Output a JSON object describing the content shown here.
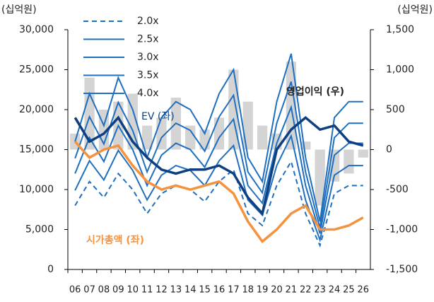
{
  "chart_data": {
    "type": "line",
    "y_label": "(십억원)",
    "y2_label": "(십억원)",
    "categories": [
      "06",
      "07",
      "08",
      "09",
      "10",
      "11",
      "12",
      "13",
      "14",
      "15",
      "16",
      "17",
      "18",
      "19",
      "20",
      "21",
      "22",
      "23",
      "24",
      "25",
      "26"
    ],
    "ylim": [
      0,
      30000
    ],
    "yticks": [
      0,
      {
        "value": 5000,
        "label": "5,000"
      },
      {
        "value": 10000,
        "label": "10,000"
      },
      {
        "value": 15000,
        "label": "15,000"
      },
      {
        "value": 20000,
        "label": "20,000"
      },
      {
        "value": 25000,
        "label": "25,000"
      },
      {
        "value": 30000,
        "label": "30,000"
      }
    ],
    "y2lim": [
      -1500,
      1500
    ],
    "y2ticks": [
      {
        "value": -1500,
        "label": "-1,500"
      },
      {
        "value": -1000,
        "label": "-1,000"
      },
      -500,
      0,
      500,
      {
        "value": 1000,
        "label": "1,000"
      },
      {
        "value": 1500,
        "label": "1,500"
      }
    ],
    "series": [
      {
        "name": "2.0x",
        "color": "#1f6fc0",
        "dash": true,
        "values": [
          8000,
          11000,
          9000,
          12000,
          10000,
          7000,
          9500,
          10500,
          10000,
          8500,
          11000,
          12500,
          7000,
          5500,
          10500,
          13500,
          7000,
          3000,
          9500,
          10500,
          10500
        ]
      },
      {
        "name": "2.5x",
        "color": "#1f6fc0",
        "values": [
          9900,
          13600,
          11200,
          14900,
          12400,
          8700,
          11800,
          13000,
          12400,
          10500,
          13600,
          15500,
          8700,
          6800,
          13000,
          16700,
          8700,
          3700,
          11800,
          13000,
          13000
        ]
      },
      {
        "name": "3.0x",
        "color": "#1f6fc0",
        "values": [
          12000,
          16500,
          13500,
          18000,
          15000,
          10500,
          14300,
          15800,
          15000,
          12800,
          16500,
          18800,
          10500,
          8300,
          15800,
          20300,
          10500,
          4500,
          14300,
          15800,
          15800
        ]
      },
      {
        "name": "3.5x",
        "color": "#1f6fc0",
        "values": [
          13900,
          19100,
          15700,
          20900,
          17400,
          12200,
          16500,
          18300,
          17400,
          14800,
          19100,
          21800,
          12200,
          9600,
          18300,
          23500,
          12200,
          5200,
          16500,
          18300,
          18300
        ]
      },
      {
        "name": "4.0x",
        "color": "#1f6fc0",
        "values": [
          16000,
          22000,
          18000,
          24000,
          20000,
          14000,
          19000,
          21000,
          20000,
          17000,
          22000,
          25000,
          14000,
          11000,
          21000,
          27000,
          14000,
          6000,
          19000,
          21000,
          21000
        ]
      }
    ],
    "lines": [
      {
        "name": "EV (좌)",
        "color": "#0e3f80",
        "values": [
          19000,
          16000,
          17000,
          19000,
          16000,
          14000,
          12500,
          12000,
          12500,
          12500,
          13000,
          12000,
          9000,
          7000,
          15000,
          17500,
          19000,
          17500,
          18000,
          16000,
          15500
        ]
      },
      {
        "name": "시가총액 (좌)",
        "color": "#f5923e",
        "values": [
          16000,
          14000,
          15000,
          15500,
          13000,
          11000,
          10000,
          10500,
          10000,
          10500,
          11000,
          9500,
          6000,
          3500,
          5000,
          7000,
          8000,
          5000,
          5000,
          5500,
          6500
        ]
      }
    ],
    "bars": {
      "name": "영업이익 (우)",
      "color": "#d4d4d4",
      "axis": "y2",
      "values": [
        200,
        900,
        500,
        600,
        700,
        300,
        400,
        650,
        300,
        250,
        400,
        1000,
        600,
        300,
        200,
        1100,
        100,
        -700,
        -400,
        -300,
        -100
      ]
    }
  }
}
